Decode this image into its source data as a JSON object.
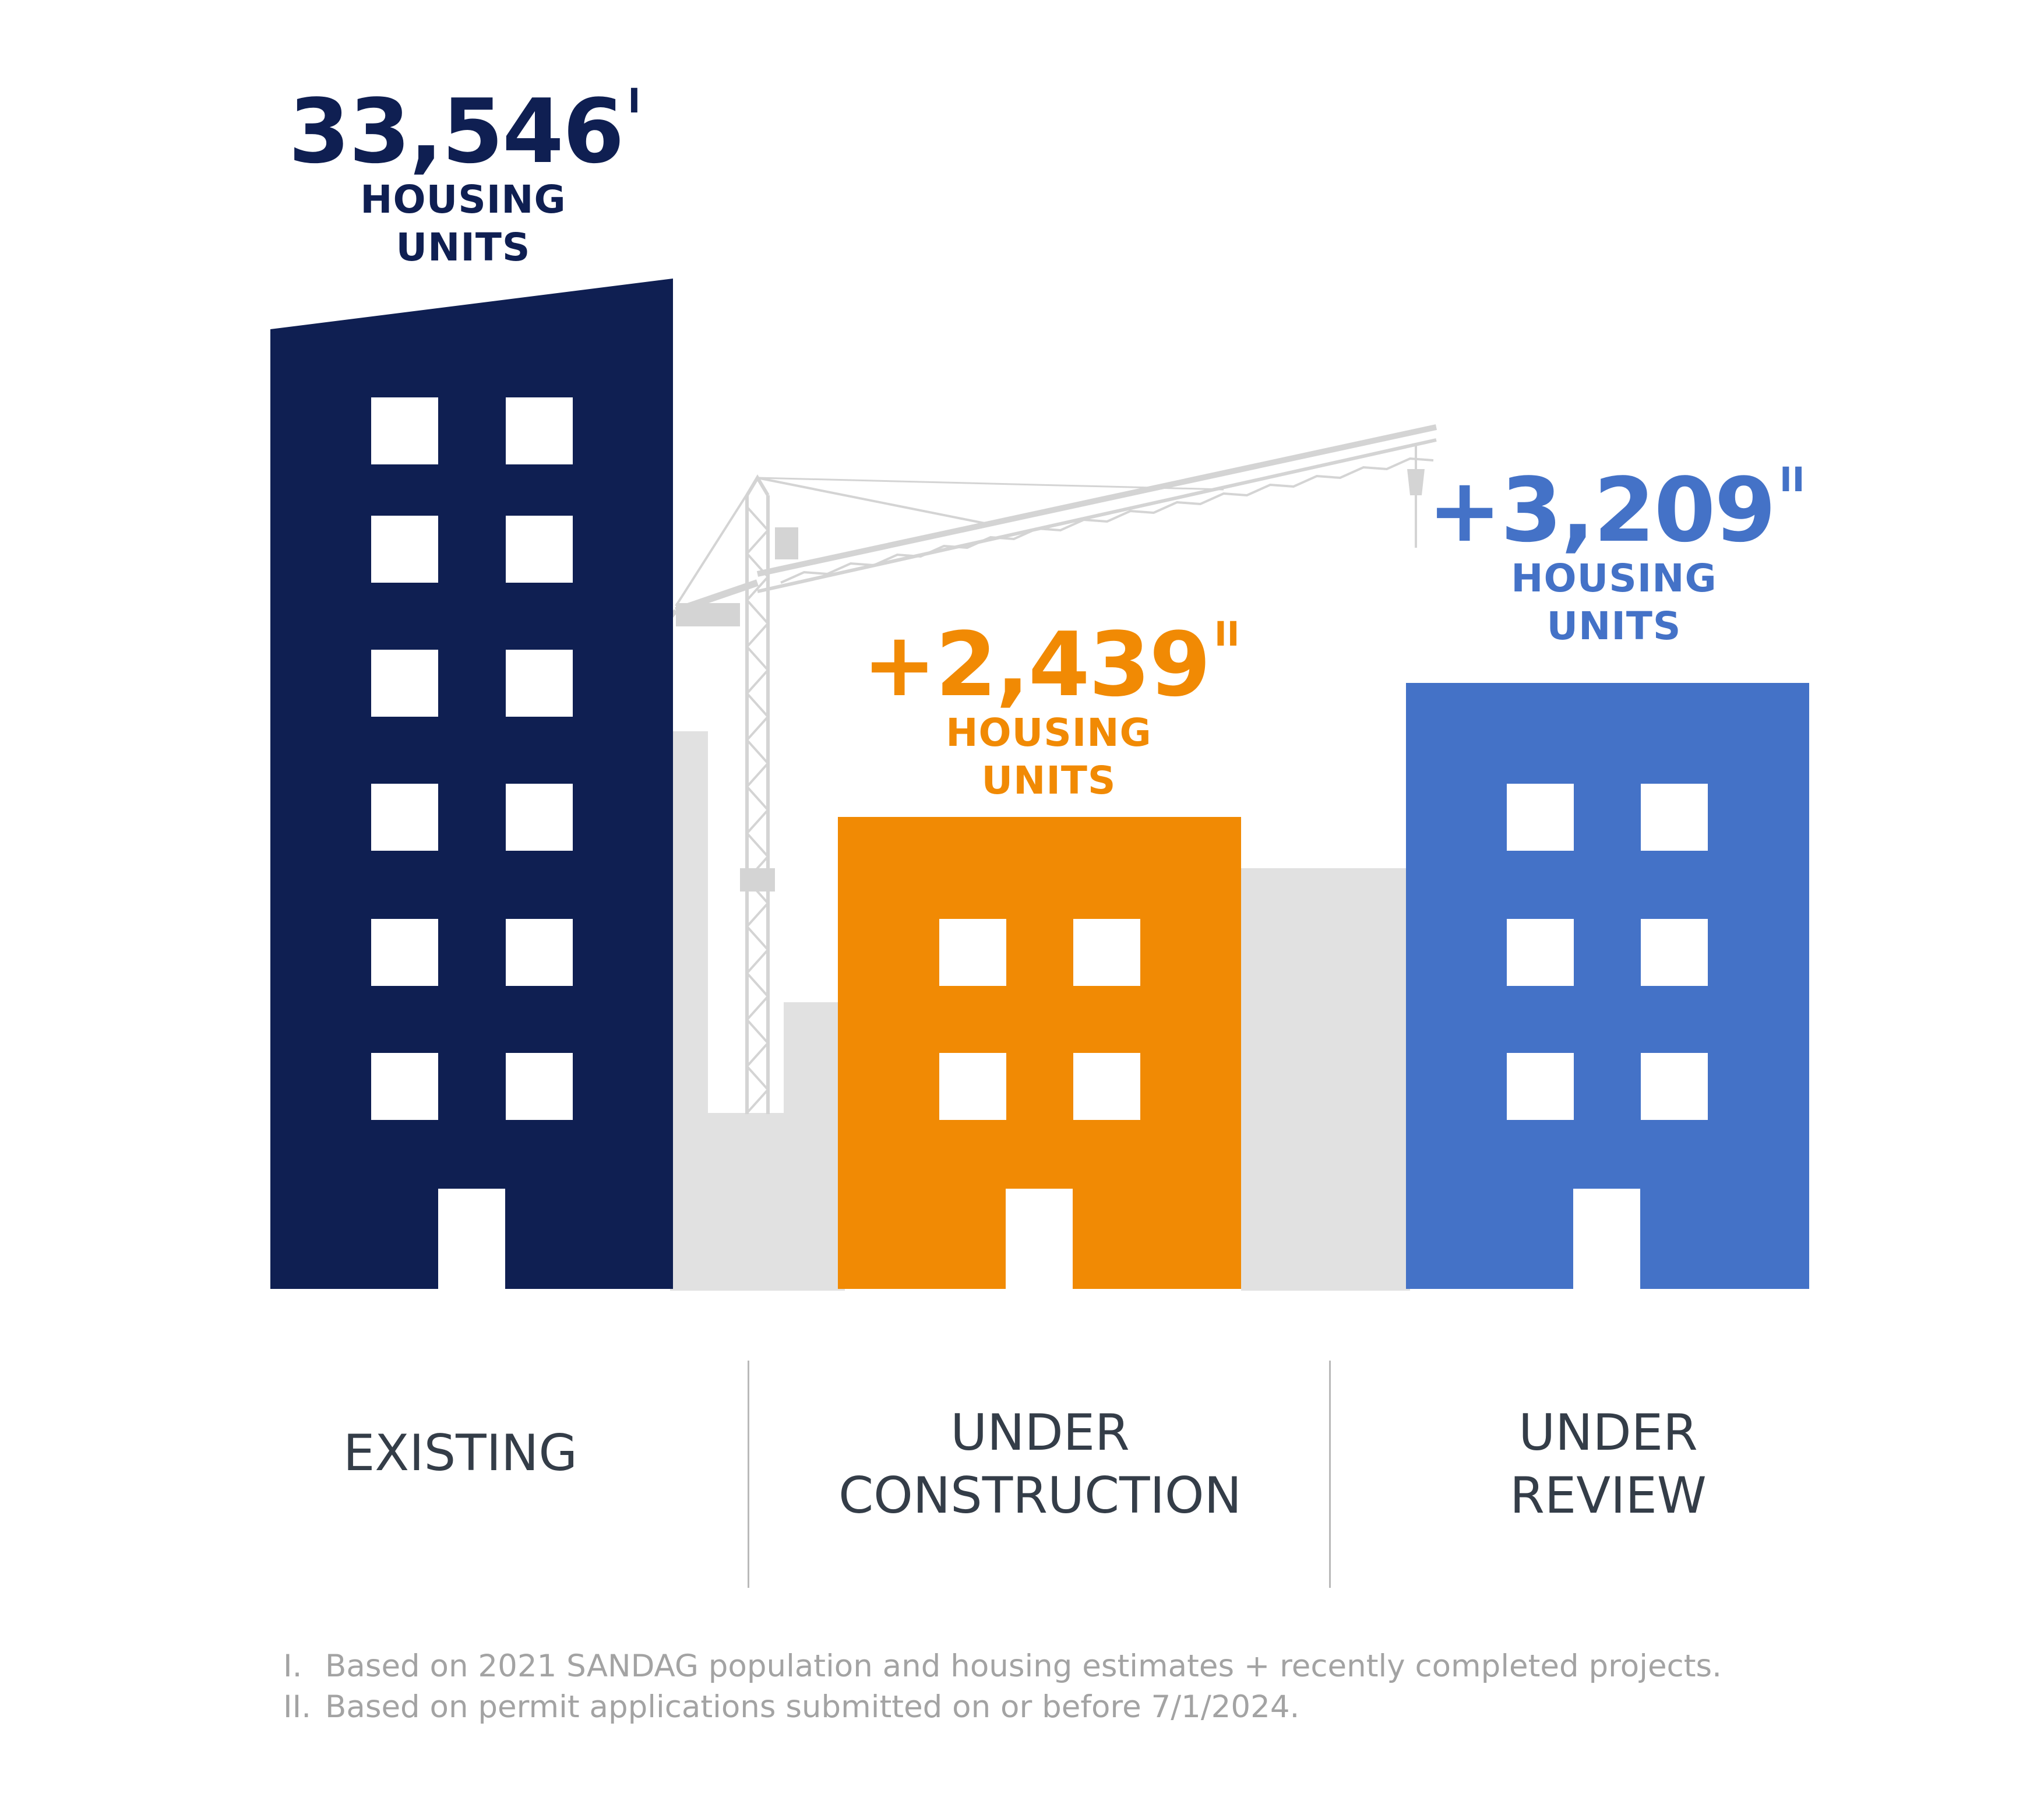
{
  "colors": {
    "existing": "#0f1f52",
    "under_construction": "#f18a04",
    "under_review": "#4472c7",
    "background_buildings": "#e1e1e1",
    "crane": "#d6d6d6",
    "window": "#ffffff",
    "category_text": "#343d48",
    "footnote_text": "#a3a3a3"
  },
  "stats": [
    {
      "id": "existing",
      "value": "33,546",
      "footnote_ref": "I",
      "label_line1": "HOUSING",
      "label_line2": "UNITS",
      "category_line1": "EXISTING",
      "category_line2": ""
    },
    {
      "id": "under_construction",
      "value": "+2,439",
      "footnote_ref": "II",
      "label_line1": "HOUSING",
      "label_line2": "UNITS",
      "category_line1": "UNDER",
      "category_line2": "CONSTRUCTION"
    },
    {
      "id": "under_review",
      "value": "+3,209",
      "footnote_ref": "II",
      "label_line1": "HOUSING",
      "label_line2": "UNITS",
      "category_line1": "UNDER",
      "category_line2": "REVIEW"
    }
  ],
  "footnotes": [
    {
      "marker": "I.",
      "text": "Based on 2021 SANDAG population and housing estimates + recently completed projects."
    },
    {
      "marker": "II.",
      "text": "Based on permit applications submitted on or before 7/1/2024."
    }
  ]
}
